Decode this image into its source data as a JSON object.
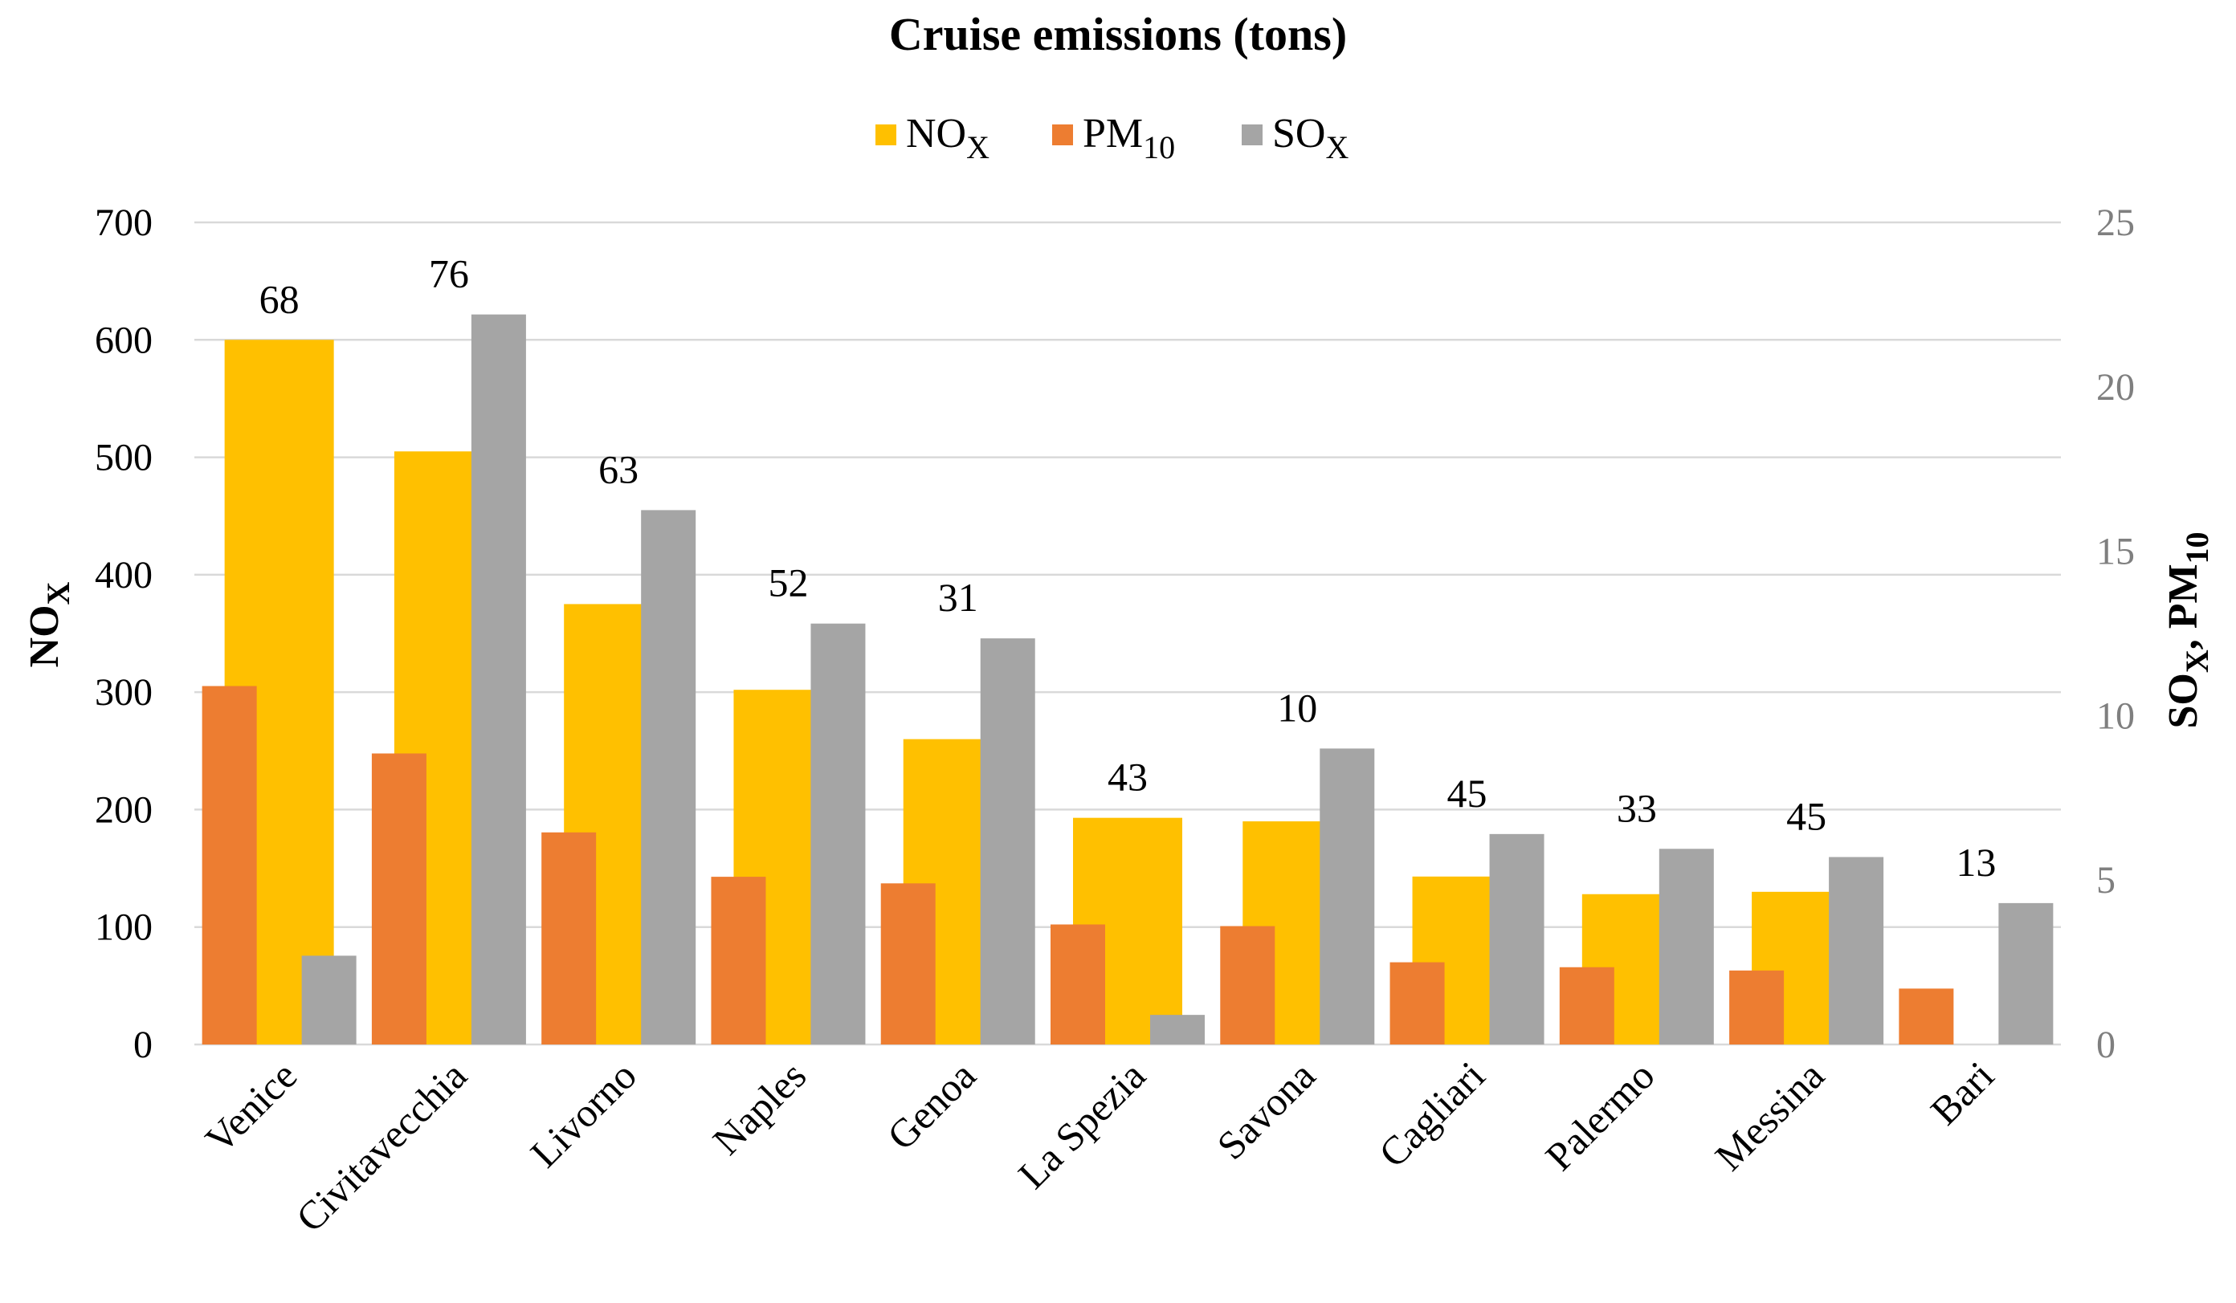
{
  "chart_data": {
    "type": "bar",
    "title": "Cruise emissions (tons)",
    "categories": [
      "Venice",
      "Civitavecchia",
      "Livorno",
      "Naples",
      "Genoa",
      "La Spezia",
      "Savona",
      "Cagliari",
      "Palermo",
      "Messina",
      "Bari"
    ],
    "series": [
      {
        "name": "NOX",
        "legend_main": "NO",
        "legend_sub": "X",
        "axis": "left",
        "color": "#FFC000",
        "values": [
          600,
          505,
          375,
          302,
          260,
          193,
          190,
          143,
          128,
          130,
          0
        ]
      },
      {
        "name": "PM10",
        "legend_main": "PM",
        "legend_sub": "10",
        "axis": "right",
        "color": "#ED7D31",
        "values": [
          10.9,
          8.85,
          6.45,
          5.1,
          4.9,
          3.65,
          3.6,
          2.5,
          2.35,
          2.25,
          1.7
        ]
      },
      {
        "name": "SOX",
        "legend_main": "SO",
        "legend_sub": "X",
        "axis": "right",
        "color": "#A5A5A5",
        "values": [
          2.7,
          22.2,
          16.25,
          12.8,
          12.35,
          0.9,
          9.0,
          6.4,
          5.95,
          5.7,
          4.3
        ]
      }
    ],
    "bar_labels": [
      "68",
      "76",
      "63",
      "52",
      "31",
      "43",
      "10",
      "45",
      "33",
      "45",
      "13"
    ],
    "y_left": {
      "label_main": "NO",
      "label_sub": "X",
      "min": 0,
      "max": 700,
      "ticks": [
        "0",
        "100",
        "200",
        "300",
        "400",
        "500",
        "600",
        "700"
      ]
    },
    "y_right": {
      "label_main1": "SO",
      "label_sub1": "X",
      "label_sep": ", PM",
      "label_sub2": "10",
      "min": 0,
      "max": 25,
      "ticks": [
        "0",
        "5",
        "10",
        "15",
        "20",
        "25"
      ]
    },
    "legend_position": "top-center",
    "grid": true
  }
}
